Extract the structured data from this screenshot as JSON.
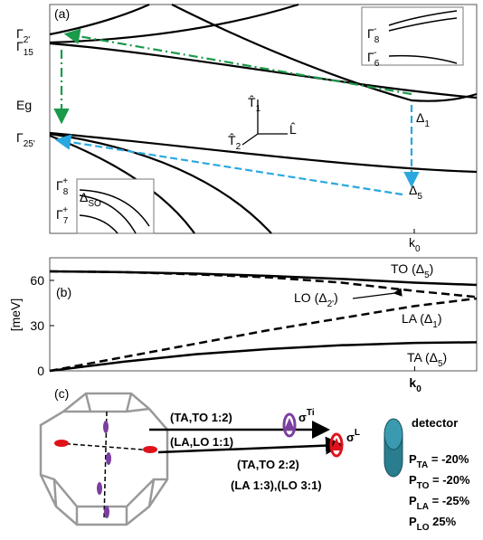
{
  "panel_a": {
    "labels": [
      {
        "base": "(a)"
      },
      {
        "base": "Γ",
        "sub": "2'"
      },
      {
        "base": "Γ",
        "sub": "15"
      },
      {
        "base": "Eg"
      },
      {
        "base": "Γ",
        "sub": "25'"
      },
      {
        "base": "Δ",
        "sub": "1"
      },
      {
        "base": "Δ",
        "sub": "5"
      },
      {
        "base": "Γ",
        "sub": "8",
        "sup": "-"
      },
      {
        "base": "Γ",
        "sub": "6",
        "sup": "-"
      },
      {
        "base": "Γ",
        "sub": "8",
        "sup": "+"
      },
      {
        "base": "Γ",
        "sub": "7",
        "sup": "+"
      },
      {
        "base": "Δ",
        "sub": "SO"
      },
      {
        "base": "T̂",
        "sub": "1"
      },
      {
        "base": "T̂",
        "sub": "2"
      },
      {
        "base": "L̂"
      },
      {
        "base": "k",
        "sub": "0"
      }
    ]
  },
  "chart_data": {
    "type": "line",
    "ylabel": "[meV]",
    "x": [
      0,
      0.2,
      0.4,
      0.6,
      0.8,
      1.0,
      1.17
    ],
    "xlim": [
      0,
      1.17
    ],
    "xticks": [
      {
        "value": 1,
        "label": {
          "base": "k",
          "sub": "0"
        }
      }
    ],
    "ylim": [
      0,
      75
    ],
    "yticks": [
      0,
      30,
      60
    ],
    "series": [
      {
        "color": "#000000",
        "dashed": false,
        "values": [
          66,
          65.5,
          64.5,
          63,
          61,
          58.5,
          57
        ]
      },
      {
        "color": "#000000",
        "dashed": true,
        "values": [
          66,
          65.5,
          64,
          62,
          58.5,
          53,
          49
        ]
      },
      {
        "color": "#000000",
        "dashed": true,
        "values": [
          0,
          9,
          18,
          27,
          35,
          43,
          48
        ]
      },
      {
        "color": "#000000",
        "dashed": false,
        "values": [
          0,
          6,
          11,
          14.5,
          17,
          18.5,
          19
        ]
      }
    ],
    "annotations": [
      {
        "base": "(b)"
      },
      {
        "base": "TO (Δ",
        "sub": "5",
        "post": ")"
      },
      {
        "base": "LO (Δ",
        "sub": "2'",
        "post": ")"
      },
      {
        "base": "LA (Δ",
        "sub": "1",
        "post": ")"
      },
      {
        "base": "TA (Δ",
        "sub": "5",
        "post": ")"
      }
    ]
  },
  "panel_c": {
    "labels": [
      {
        "base": "(c)"
      },
      {
        "base": "(TA,TO 1:2)"
      },
      {
        "base": "(LA,LO 1:1)"
      },
      {
        "base": "σ",
        "sup": "Ti"
      },
      {
        "base": "(TA,TO 2:2)"
      },
      {
        "base": "(LA 1:3),(LO 3:1)"
      },
      {
        "base": "σ",
        "sup": "L"
      },
      {
        "base": "detector"
      },
      {
        "base": "P",
        "sub": "TA",
        "post": " = -20%"
      },
      {
        "base": "P",
        "sub": "TO",
        "post": " = -20%"
      },
      {
        "base": "P",
        "sub": "LA",
        "post": " = -25%"
      },
      {
        "base": "P",
        "sub": "LO",
        "post": "  25%"
      }
    ]
  }
}
